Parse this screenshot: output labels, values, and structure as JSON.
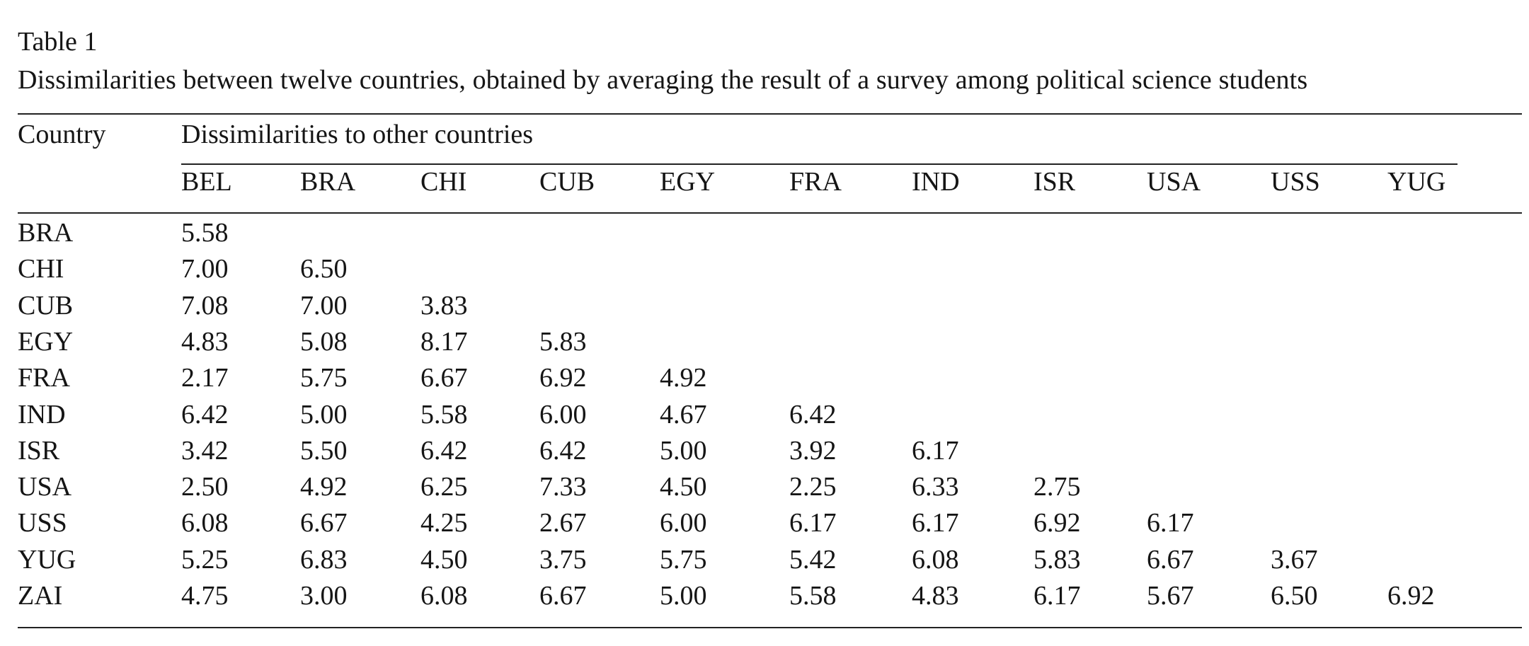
{
  "caption": {
    "label": "Table 1",
    "text": "Dissimilarities between twelve countries, obtained by averaging the result of a survey among political science students"
  },
  "table": {
    "row_header_label": "Country",
    "spanner_label": "Dissimilarities to other countries",
    "columns": [
      "BEL",
      "BRA",
      "CHI",
      "CUB",
      "EGY",
      "FRA",
      "IND",
      "ISR",
      "USA",
      "USS",
      "YUG"
    ],
    "rows": [
      {
        "country": "BRA",
        "values": [
          "5.58"
        ]
      },
      {
        "country": "CHI",
        "values": [
          "7.00",
          "6.50"
        ]
      },
      {
        "country": "CUB",
        "values": [
          "7.08",
          "7.00",
          "3.83"
        ]
      },
      {
        "country": "EGY",
        "values": [
          "4.83",
          "5.08",
          "8.17",
          "5.83"
        ]
      },
      {
        "country": "FRA",
        "values": [
          "2.17",
          "5.75",
          "6.67",
          "6.92",
          "4.92"
        ]
      },
      {
        "country": "IND",
        "values": [
          "6.42",
          "5.00",
          "5.58",
          "6.00",
          "4.67",
          "6.42"
        ]
      },
      {
        "country": "ISR",
        "values": [
          "3.42",
          "5.50",
          "6.42",
          "6.42",
          "5.00",
          "3.92",
          "6.17"
        ]
      },
      {
        "country": "USA",
        "values": [
          "2.50",
          "4.92",
          "6.25",
          "7.33",
          "4.50",
          "2.25",
          "6.33",
          "2.75"
        ]
      },
      {
        "country": "USS",
        "values": [
          "6.08",
          "6.67",
          "4.25",
          "2.67",
          "6.00",
          "6.17",
          "6.17",
          "6.92",
          "6.17"
        ]
      },
      {
        "country": "YUG",
        "values": [
          "5.25",
          "6.83",
          "4.50",
          "3.75",
          "5.75",
          "5.42",
          "6.08",
          "5.83",
          "6.67",
          "3.67"
        ]
      },
      {
        "country": "ZAI",
        "values": [
          "4.75",
          "3.00",
          "6.08",
          "6.67",
          "5.00",
          "5.58",
          "4.83",
          "6.17",
          "5.67",
          "6.50",
          "6.92"
        ]
      }
    ]
  }
}
